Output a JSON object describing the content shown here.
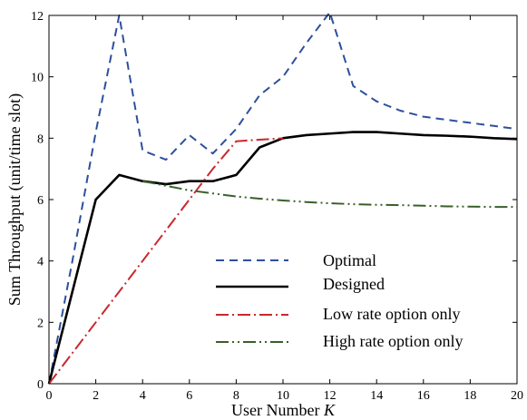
{
  "chart_data": {
    "type": "line",
    "title": "",
    "xlabel": "User Number",
    "xlabel_symbol": "K",
    "ylabel": "Sum Throughput (unit/time slot)",
    "xlim": [
      0,
      20
    ],
    "ylim": [
      0,
      12
    ],
    "xticks": [
      0,
      2,
      4,
      6,
      8,
      10,
      12,
      14,
      16,
      18,
      20
    ],
    "yticks": [
      0,
      2,
      4,
      6,
      8,
      10,
      12
    ],
    "grid": false,
    "legend_position": "lower-right",
    "series": [
      {
        "name": "Optimal",
        "color": "#2e4f9e",
        "style": "dashed",
        "x": [
          0,
          1,
          2,
          3,
          4,
          5,
          6,
          7,
          8,
          9,
          10,
          11,
          12,
          13,
          14,
          15,
          16,
          17,
          18,
          19,
          20
        ],
        "y": [
          0,
          4.0,
          8.2,
          12.0,
          7.6,
          7.3,
          8.1,
          7.5,
          8.3,
          9.4,
          10.0,
          11.1,
          12.1,
          9.7,
          9.2,
          8.9,
          8.7,
          8.6,
          8.5,
          8.4,
          8.3
        ]
      },
      {
        "name": "Designed",
        "color": "#000000",
        "style": "solid",
        "x": [
          0,
          1,
          2,
          3,
          4,
          5,
          6,
          7,
          8,
          9,
          10,
          11,
          12,
          13,
          14,
          15,
          16,
          17,
          18,
          19,
          20
        ],
        "y": [
          0,
          3.0,
          6.0,
          6.8,
          6.6,
          6.5,
          6.6,
          6.6,
          6.8,
          7.7,
          8.0,
          8.1,
          8.15,
          8.2,
          8.2,
          8.15,
          8.1,
          8.08,
          8.05,
          8.0,
          7.97
        ]
      },
      {
        "name": "Low rate option only",
        "color": "#c8282d",
        "style": "dashdot",
        "x": [
          0,
          1,
          2,
          3,
          4,
          5,
          6,
          7,
          8,
          9,
          10
        ],
        "y": [
          0,
          1.0,
          2.0,
          3.0,
          4.0,
          5.0,
          6.0,
          7.0,
          7.9,
          7.95,
          8.0
        ]
      },
      {
        "name": "High rate option only",
        "color": "#3a5f2a",
        "style": "dashdotdot",
        "x": [
          4,
          5,
          6,
          7,
          8,
          9,
          10,
          11,
          12,
          13,
          14,
          15,
          16,
          17,
          18,
          19,
          20
        ],
        "y": [
          6.6,
          6.45,
          6.3,
          6.2,
          6.1,
          6.03,
          5.97,
          5.92,
          5.88,
          5.85,
          5.83,
          5.82,
          5.8,
          5.78,
          5.77,
          5.76,
          5.76
        ]
      }
    ]
  }
}
